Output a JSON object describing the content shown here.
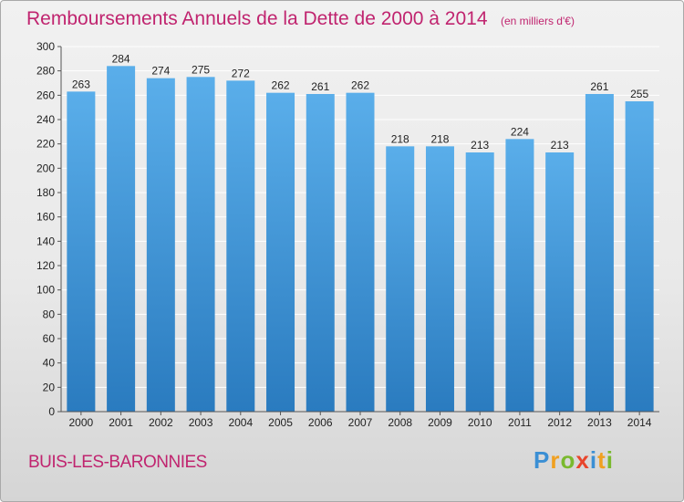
{
  "chart_data": {
    "type": "bar",
    "title": "Remboursements Annuels de la Dette de 2000 à 2014",
    "unit": "(en milliers d'€)",
    "xlabel": "",
    "ylabel": "",
    "categories": [
      "2000",
      "2001",
      "2002",
      "2003",
      "2004",
      "2005",
      "2006",
      "2007",
      "2008",
      "2009",
      "2010",
      "2011",
      "2012",
      "2013",
      "2014"
    ],
    "values": [
      263,
      284,
      274,
      275,
      272,
      262,
      261,
      262,
      218,
      218,
      213,
      224,
      213,
      261,
      255
    ],
    "ylim": [
      0,
      300
    ],
    "yticks": [
      0,
      20,
      40,
      60,
      80,
      100,
      120,
      140,
      160,
      180,
      200,
      220,
      240,
      260,
      280,
      300
    ],
    "grid": true,
    "legend": "none",
    "bar_color_top": "#5aaeea",
    "bar_color_bottom": "#2a7bbf"
  },
  "commune": "BUIS-LES-BARONNIES",
  "brand": {
    "letters": [
      "P",
      "r",
      "o",
      "x",
      "i",
      "t",
      "i"
    ],
    "colors": [
      "#3b8fd4",
      "#f0a020",
      "#7ab92e",
      "#e8452c",
      "#3b8fd4",
      "#f0a020",
      "#7ab92e"
    ]
  },
  "colors": {
    "accent": "#c0246f",
    "grid": "#ffffff",
    "axis": "#555555"
  }
}
